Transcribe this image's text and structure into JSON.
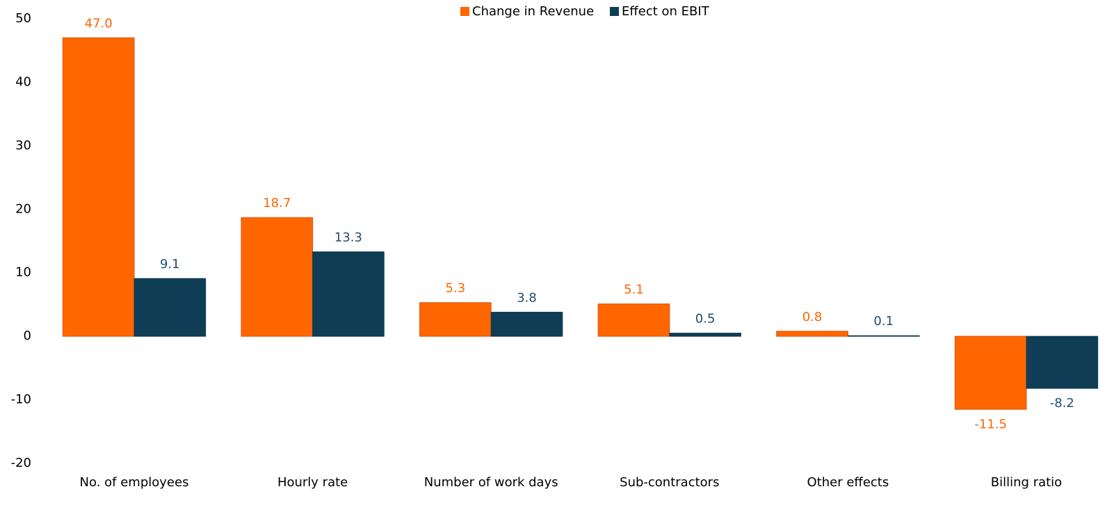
{
  "chart_data": {
    "type": "bar",
    "categories": [
      "No. of employees",
      "Hourly rate",
      "Number of work days",
      "Sub-contractors",
      "Other effects",
      "Billing ratio"
    ],
    "series": [
      {
        "name": "Change in Revenue",
        "color": "#ff6600",
        "values": [
          47.0,
          18.7,
          5.3,
          5.1,
          0.8,
          -11.5
        ],
        "value_labels": [
          "47.0",
          "18.7",
          "5.3",
          "5.1",
          "0.8",
          "-11.5"
        ]
      },
      {
        "name": "Effect on EBIT",
        "color": "#0e3d55",
        "values": [
          9.1,
          13.3,
          3.8,
          0.5,
          0.1,
          -8.2
        ],
        "value_labels": [
          "9.1",
          "13.3",
          "3.8",
          "0.5",
          "0.1",
          "-8.2"
        ]
      }
    ],
    "ylim": [
      -20,
      50
    ],
    "yticks": [
      -20,
      -10,
      0,
      10,
      20,
      30,
      40,
      50
    ],
    "grid": false,
    "legend": "top"
  }
}
